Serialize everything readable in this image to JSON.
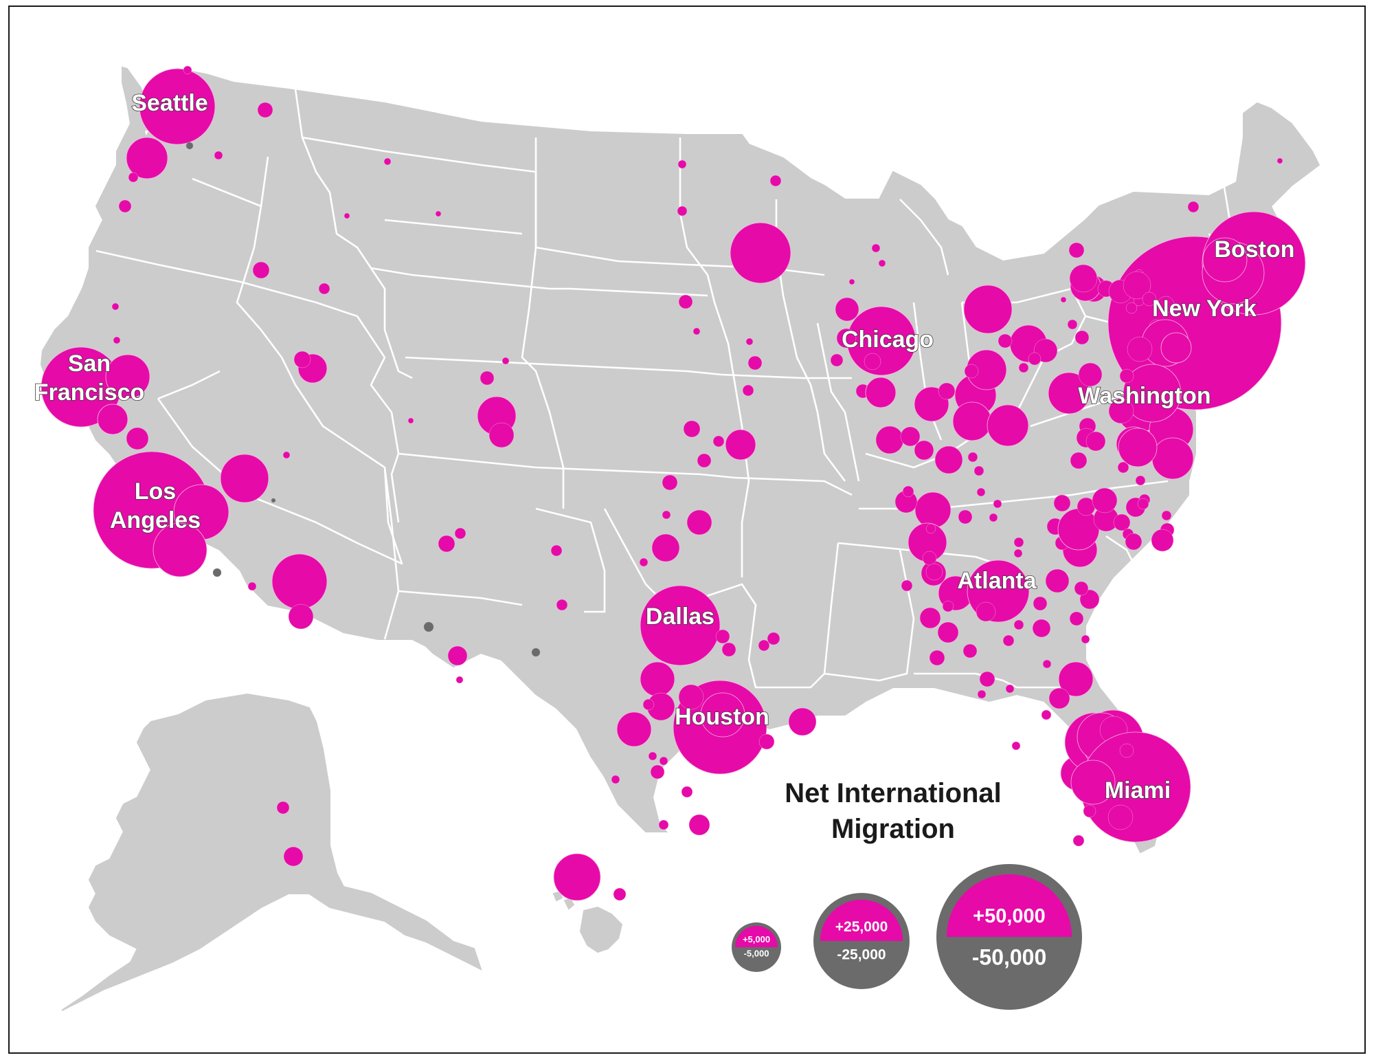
{
  "title": [
    "Net International",
    "Migration"
  ],
  "colors": {
    "positive": "#e60aa8",
    "negative": "#6b6b6b",
    "land": "#cccccc",
    "border": "#ffffff"
  },
  "city_labels": [
    {
      "id": "seattle",
      "lines": [
        "Seattle"
      ]
    },
    {
      "id": "san-francisco",
      "lines": [
        "San",
        "Francisco"
      ]
    },
    {
      "id": "los-angeles",
      "lines": [
        "Los",
        "Angeles"
      ]
    },
    {
      "id": "dallas",
      "lines": [
        "Dallas"
      ]
    },
    {
      "id": "houston",
      "lines": [
        "Houston"
      ]
    },
    {
      "id": "chicago",
      "lines": [
        "Chicago"
      ]
    },
    {
      "id": "atlanta",
      "lines": [
        "Atlanta"
      ]
    },
    {
      "id": "washington",
      "lines": [
        "Washington"
      ]
    },
    {
      "id": "new-york",
      "lines": [
        "New York"
      ]
    },
    {
      "id": "boston",
      "lines": [
        "Boston"
      ]
    },
    {
      "id": "miami",
      "lines": [
        "Miami"
      ]
    }
  ],
  "legend": [
    {
      "positive": "+5,000",
      "negative": "-5,000"
    },
    {
      "positive": "+25,000",
      "negative": "-25,000"
    },
    {
      "positive": "+50,000",
      "negative": "-50,000"
    }
  ]
}
